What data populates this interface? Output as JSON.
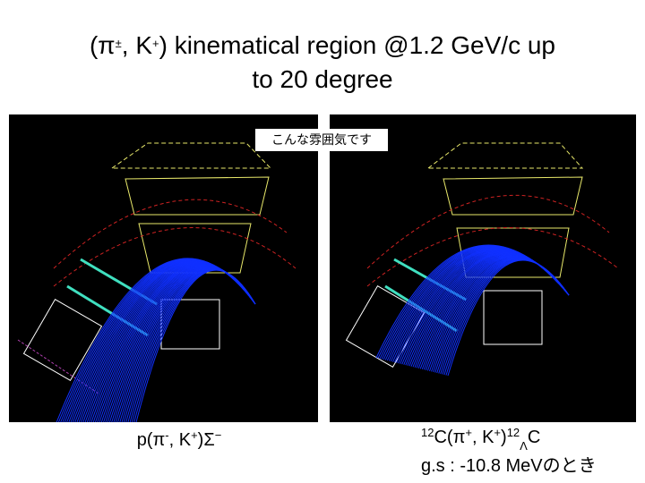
{
  "title": {
    "line1": [
      "(π",
      "±",
      ", K",
      "+",
      ") kinematical region  @1.2 GeV/c up"
    ],
    "line2": "to 20 degree"
  },
  "overlay_label": "こんな雰囲気です",
  "left_caption": [
    "p(π",
    "-",
    ", K",
    "+",
    ")Σ",
    "−"
  ],
  "right_caption": {
    "line1": [
      "12",
      "C(π",
      "+",
      ", K",
      "+",
      ")",
      "12",
      "Λ",
      "C"
    ],
    "line2": "g.s : -10.8 MeVのとき"
  }
}
